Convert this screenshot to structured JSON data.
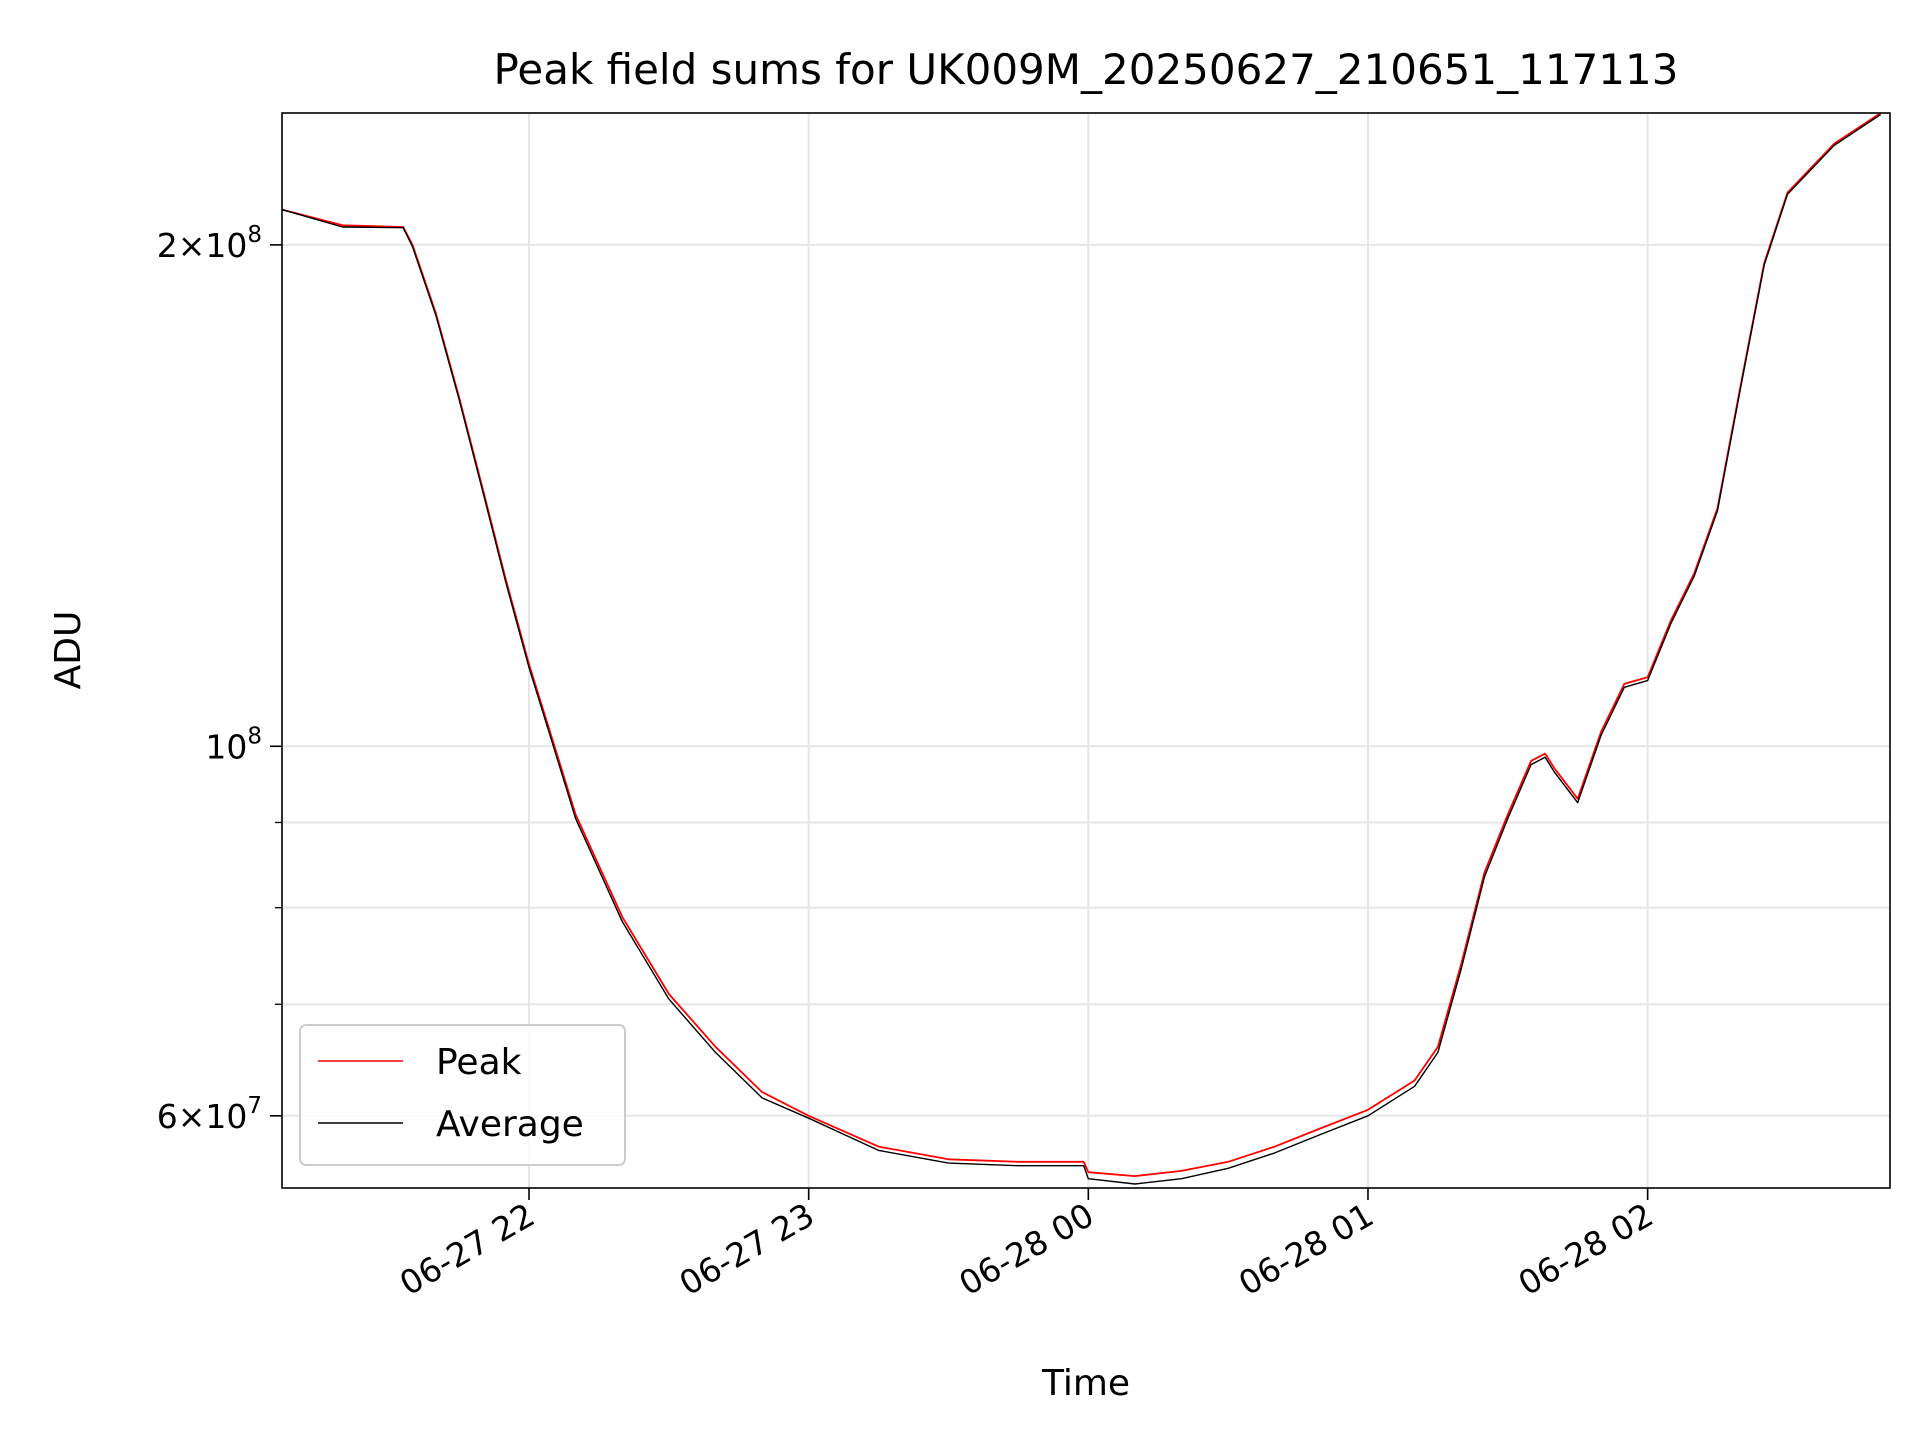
{
  "chart_data": {
    "type": "line",
    "title": "Peak field sums for UK009M_20250627_210651_117113",
    "xlabel": "Time",
    "ylabel": "ADU",
    "yscale": "log",
    "grid": true,
    "legend": "lower-left",
    "x_ticks": [
      {
        "value": "2025-06-27T22:00",
        "label": "06-27 22"
      },
      {
        "value": "2025-06-27T23:00",
        "label": "06-27 23"
      },
      {
        "value": "2025-06-28T00:00",
        "label": "06-28 00"
      },
      {
        "value": "2025-06-28T01:00",
        "label": "06-28 01"
      },
      {
        "value": "2025-06-28T02:00",
        "label": "06-28 02"
      }
    ],
    "y_ticks": [
      {
        "value": 60000000,
        "mantissa": "6",
        "base": "10",
        "exp": "7"
      },
      {
        "value": 100000000,
        "mantissa": "",
        "base": "10",
        "exp": "8"
      },
      {
        "value": 200000000,
        "mantissa": "2",
        "base": "10",
        "exp": "8"
      }
    ],
    "y_minor_ticks": [
      70000000,
      80000000,
      90000000
    ],
    "xlim": [
      "2025-06-27T21:07",
      "2025-06-28T02:52"
    ],
    "ylim": [
      54300000,
      240000000
    ],
    "series": [
      {
        "name": "Peak",
        "color": "#ff0000",
        "x": [
          "2025-06-27T21:07",
          "2025-06-27T21:20",
          "2025-06-27T21:33",
          "2025-06-27T21:35",
          "2025-06-27T21:40",
          "2025-06-27T21:45",
          "2025-06-27T21:50",
          "2025-06-27T21:55",
          "2025-06-27T22:00",
          "2025-06-27T22:05",
          "2025-06-27T22:10",
          "2025-06-27T22:20",
          "2025-06-27T22:30",
          "2025-06-27T22:40",
          "2025-06-27T22:50",
          "2025-06-27T23:00",
          "2025-06-27T23:15",
          "2025-06-27T23:30",
          "2025-06-27T23:45",
          "2025-06-27T23:59",
          "2025-06-28T00:00",
          "2025-06-28T00:10",
          "2025-06-28T00:20",
          "2025-06-28T00:30",
          "2025-06-28T00:40",
          "2025-06-28T00:50",
          "2025-06-28T01:00",
          "2025-06-28T01:10",
          "2025-06-28T01:15",
          "2025-06-28T01:20",
          "2025-06-28T01:25",
          "2025-06-28T01:30",
          "2025-06-28T01:35",
          "2025-06-28T01:38",
          "2025-06-28T01:40",
          "2025-06-28T01:45",
          "2025-06-28T01:50",
          "2025-06-28T01:55",
          "2025-06-28T02:00",
          "2025-06-28T02:05",
          "2025-06-28T02:10",
          "2025-06-28T02:15",
          "2025-06-28T02:20",
          "2025-06-28T02:25",
          "2025-06-28T02:30",
          "2025-06-28T02:40",
          "2025-06-28T02:50"
        ],
        "y": [
          210000000,
          205500000,
          205000000,
          200000000,
          182000000,
          162000000,
          143000000,
          126000000,
          112000000,
          101000000,
          91000000,
          79000000,
          71000000,
          66000000,
          62000000,
          60000000,
          57500000,
          56500000,
          56300000,
          56300000,
          55500000,
          55200000,
          55600000,
          56300000,
          57500000,
          59000000,
          60500000,
          63000000,
          66000000,
          74000000,
          84000000,
          91000000,
          98000000,
          99000000,
          97000000,
          93000000,
          102000000,
          109000000,
          110000000,
          119000000,
          127000000,
          139000000,
          165000000,
          195000000,
          215000000,
          230000000,
          240000000
        ]
      },
      {
        "name": "Average",
        "color": "#000000",
        "x": [
          "2025-06-27T21:07",
          "2025-06-27T21:20",
          "2025-06-27T21:33",
          "2025-06-27T21:35",
          "2025-06-27T21:40",
          "2025-06-27T21:45",
          "2025-06-27T21:50",
          "2025-06-27T21:55",
          "2025-06-27T22:00",
          "2025-06-27T22:05",
          "2025-06-27T22:10",
          "2025-06-27T22:20",
          "2025-06-27T22:30",
          "2025-06-27T22:40",
          "2025-06-27T22:50",
          "2025-06-27T23:00",
          "2025-06-27T23:15",
          "2025-06-27T23:30",
          "2025-06-27T23:45",
          "2025-06-27T23:59",
          "2025-06-28T00:00",
          "2025-06-28T00:10",
          "2025-06-28T00:20",
          "2025-06-28T00:30",
          "2025-06-28T00:40",
          "2025-06-28T00:50",
          "2025-06-28T01:00",
          "2025-06-28T01:10",
          "2025-06-28T01:15",
          "2025-06-28T01:20",
          "2025-06-28T01:25",
          "2025-06-28T01:30",
          "2025-06-28T01:35",
          "2025-06-28T01:38",
          "2025-06-28T01:40",
          "2025-06-28T01:45",
          "2025-06-28T01:50",
          "2025-06-28T01:55",
          "2025-06-28T02:00",
          "2025-06-28T02:05",
          "2025-06-28T02:10",
          "2025-06-28T02:15",
          "2025-06-28T02:20",
          "2025-06-28T02:25",
          "2025-06-28T02:30",
          "2025-06-28T02:40",
          "2025-06-28T02:50"
        ],
        "y": [
          210000000,
          205000000,
          204800000,
          199500000,
          181500000,
          161500000,
          142500000,
          125500000,
          111500000,
          100500000,
          90500000,
          78500000,
          70500000,
          65500000,
          61500000,
          59800000,
          57200000,
          56200000,
          56000000,
          56000000,
          55000000,
          54600000,
          55000000,
          55800000,
          57000000,
          58500000,
          60000000,
          62500000,
          65500000,
          73500000,
          83500000,
          90500000,
          97500000,
          98500000,
          96500000,
          92500000,
          101500000,
          108500000,
          109500000,
          118500000,
          126500000,
          138500000,
          164500000,
          194500000,
          214500000,
          229500000,
          239500000
        ]
      }
    ]
  }
}
